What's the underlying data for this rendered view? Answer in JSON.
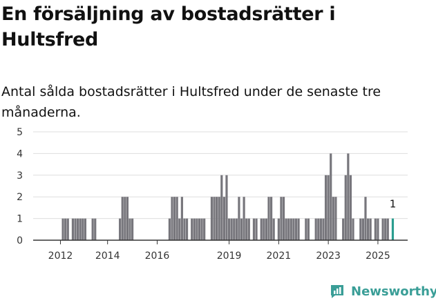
{
  "header": {
    "title": "En försäljning av bostadsrätter i Hultsfred",
    "subtitle": "Antal sålda bostadsrätter i Hultsfred under de senaste tre månaderna."
  },
  "brand": {
    "name": "Newsworthy",
    "color": "#3a9e97"
  },
  "colors": {
    "bar": "#77767c",
    "highlight": "#2a9d8f",
    "grid": "#dddddd",
    "axis": "#333333"
  },
  "chart_data": {
    "type": "bar",
    "title": "En försäljning av bostadsrätter i Hultsfred",
    "xlabel": "",
    "ylabel": "",
    "ylim": [
      0,
      5
    ],
    "yticks": [
      0,
      1,
      2,
      3,
      4,
      5
    ],
    "xticks": [
      "2012",
      "2014",
      "2016",
      "2019",
      "2021",
      "2023",
      "2025"
    ],
    "xtick_positions": [
      2012.2,
      2014.1,
      2016.1,
      2019.0,
      2021.0,
      2023.0,
      2025.0
    ],
    "grid": true,
    "x_start": 2011.1,
    "x_end": 2026.2,
    "highlight_label": "1",
    "series": [
      {
        "values": [
          {
            "x": 2012.3,
            "y": 1
          },
          {
            "x": 2012.4,
            "y": 1
          },
          {
            "x": 2012.5,
            "y": 1
          },
          {
            "x": 2012.7,
            "y": 1
          },
          {
            "x": 2012.8,
            "y": 1
          },
          {
            "x": 2012.9,
            "y": 1
          },
          {
            "x": 2013.0,
            "y": 1
          },
          {
            "x": 2013.1,
            "y": 1
          },
          {
            "x": 2013.2,
            "y": 1
          },
          {
            "x": 2013.5,
            "y": 1
          },
          {
            "x": 2013.6,
            "y": 1
          },
          {
            "x": 2014.6,
            "y": 1
          },
          {
            "x": 2014.7,
            "y": 2
          },
          {
            "x": 2014.8,
            "y": 2
          },
          {
            "x": 2014.9,
            "y": 2
          },
          {
            "x": 2015.0,
            "y": 1
          },
          {
            "x": 2015.1,
            "y": 1
          },
          {
            "x": 2016.6,
            "y": 1
          },
          {
            "x": 2016.7,
            "y": 2
          },
          {
            "x": 2016.8,
            "y": 2
          },
          {
            "x": 2016.9,
            "y": 2
          },
          {
            "x": 2017.0,
            "y": 1
          },
          {
            "x": 2017.1,
            "y": 2
          },
          {
            "x": 2017.2,
            "y": 1
          },
          {
            "x": 2017.3,
            "y": 1
          },
          {
            "x": 2017.5,
            "y": 1
          },
          {
            "x": 2017.6,
            "y": 1
          },
          {
            "x": 2017.7,
            "y": 1
          },
          {
            "x": 2017.8,
            "y": 1
          },
          {
            "x": 2017.9,
            "y": 1
          },
          {
            "x": 2018.0,
            "y": 1
          },
          {
            "x": 2018.3,
            "y": 2
          },
          {
            "x": 2018.4,
            "y": 2
          },
          {
            "x": 2018.5,
            "y": 2
          },
          {
            "x": 2018.6,
            "y": 2
          },
          {
            "x": 2018.7,
            "y": 3
          },
          {
            "x": 2018.8,
            "y": 2
          },
          {
            "x": 2018.9,
            "y": 3
          },
          {
            "x": 2019.0,
            "y": 1
          },
          {
            "x": 2019.1,
            "y": 1
          },
          {
            "x": 2019.2,
            "y": 1
          },
          {
            "x": 2019.3,
            "y": 1
          },
          {
            "x": 2019.4,
            "y": 2
          },
          {
            "x": 2019.5,
            "y": 1
          },
          {
            "x": 2019.6,
            "y": 2
          },
          {
            "x": 2019.7,
            "y": 1
          },
          {
            "x": 2019.8,
            "y": 1
          },
          {
            "x": 2020.0,
            "y": 1
          },
          {
            "x": 2020.1,
            "y": 1
          },
          {
            "x": 2020.3,
            "y": 1
          },
          {
            "x": 2020.4,
            "y": 1
          },
          {
            "x": 2020.5,
            "y": 1
          },
          {
            "x": 2020.6,
            "y": 2
          },
          {
            "x": 2020.7,
            "y": 2
          },
          {
            "x": 2020.8,
            "y": 1
          },
          {
            "x": 2021.0,
            "y": 1
          },
          {
            "x": 2021.1,
            "y": 2
          },
          {
            "x": 2021.2,
            "y": 2
          },
          {
            "x": 2021.3,
            "y": 1
          },
          {
            "x": 2021.4,
            "y": 1
          },
          {
            "x": 2021.5,
            "y": 1
          },
          {
            "x": 2021.6,
            "y": 1
          },
          {
            "x": 2021.7,
            "y": 1
          },
          {
            "x": 2021.8,
            "y": 1
          },
          {
            "x": 2022.1,
            "y": 1
          },
          {
            "x": 2022.2,
            "y": 1
          },
          {
            "x": 2022.5,
            "y": 1
          },
          {
            "x": 2022.6,
            "y": 1
          },
          {
            "x": 2022.7,
            "y": 1
          },
          {
            "x": 2022.8,
            "y": 1
          },
          {
            "x": 2022.9,
            "y": 3
          },
          {
            "x": 2023.0,
            "y": 3
          },
          {
            "x": 2023.1,
            "y": 4
          },
          {
            "x": 2023.2,
            "y": 2
          },
          {
            "x": 2023.3,
            "y": 2
          },
          {
            "x": 2023.6,
            "y": 1
          },
          {
            "x": 2023.7,
            "y": 3
          },
          {
            "x": 2023.8,
            "y": 4
          },
          {
            "x": 2023.9,
            "y": 3
          },
          {
            "x": 2024.0,
            "y": 1
          },
          {
            "x": 2024.3,
            "y": 1
          },
          {
            "x": 2024.4,
            "y": 1
          },
          {
            "x": 2024.5,
            "y": 2
          },
          {
            "x": 2024.6,
            "y": 1
          },
          {
            "x": 2024.7,
            "y": 1
          },
          {
            "x": 2024.9,
            "y": 1
          },
          {
            "x": 2025.0,
            "y": 1
          },
          {
            "x": 2025.2,
            "y": 1
          },
          {
            "x": 2025.3,
            "y": 1
          },
          {
            "x": 2025.4,
            "y": 1
          },
          {
            "x": 2025.6,
            "y": 1,
            "highlight": true
          }
        ]
      }
    ]
  }
}
